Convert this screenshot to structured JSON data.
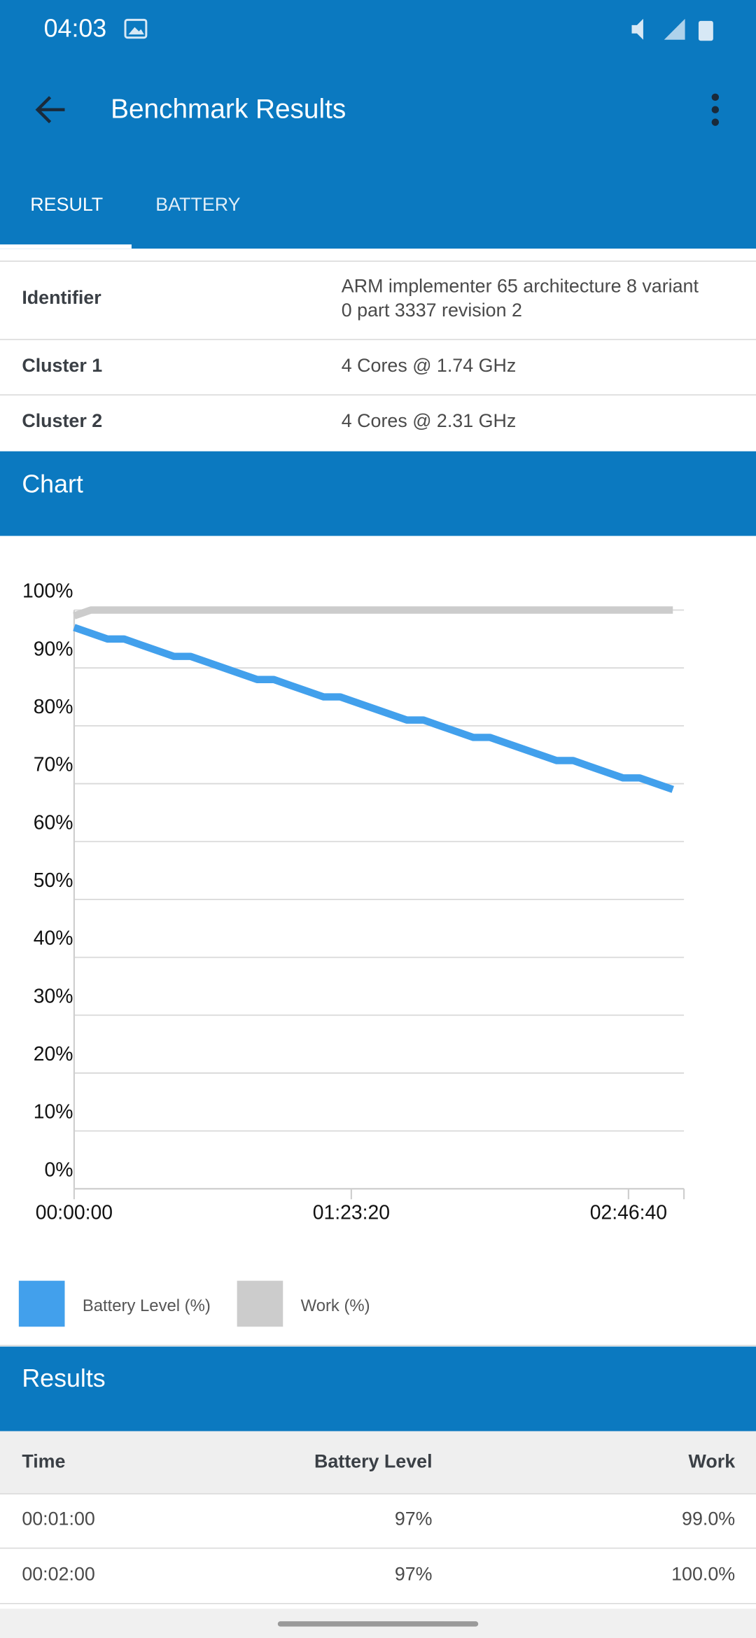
{
  "status_bar": {
    "time": "04:03"
  },
  "app_bar": {
    "title": "Benchmark Results"
  },
  "tabs": [
    "RESULT",
    "BATTERY"
  ],
  "info_table": {
    "rows": [
      {
        "label": "Identifier",
        "value_lines": [
          "ARM implementer 65 architecture 8 variant",
          "0 part 3337 revision 2"
        ]
      },
      {
        "label": "Cluster 1",
        "value_lines": [
          "4 Cores @ 1.74 GHz"
        ]
      },
      {
        "label": "Cluster 2",
        "value_lines": [
          "4 Cores @ 2.31 GHz"
        ]
      }
    ]
  },
  "chart_section": {
    "title": "Chart"
  },
  "chart_data": {
    "type": "line",
    "x": [
      0,
      300,
      600,
      900,
      1200,
      1500,
      1800,
      2100,
      2400,
      2700,
      3000,
      3300,
      3600,
      3900,
      4200,
      4500,
      4800,
      5100,
      5400,
      5700,
      6000,
      6300,
      6600,
      6900,
      7200,
      7500,
      7800,
      8100,
      8400,
      8700,
      9000,
      9300,
      9600,
      9900,
      10200,
      10500,
      10800
    ],
    "series": [
      {
        "name": "Battery Level (%)",
        "color": "#42a0ec",
        "values": [
          97,
          96,
          95,
          95,
          94,
          93,
          92,
          92,
          91,
          90,
          89,
          88,
          88,
          87,
          86,
          85,
          85,
          84,
          83,
          82,
          81,
          81,
          80,
          79,
          78,
          78,
          77,
          76,
          75,
          74,
          74,
          73,
          72,
          71,
          71,
          70,
          69
        ]
      },
      {
        "name": "Work (%)",
        "color": "#cccccc",
        "values": [
          99,
          100,
          100,
          100,
          100,
          100,
          100,
          100,
          100,
          100,
          100,
          100,
          100,
          100,
          100,
          100,
          100,
          100,
          100,
          100,
          100,
          100,
          100,
          100,
          100,
          100,
          100,
          100,
          100,
          100,
          100,
          100,
          100,
          100,
          100,
          100,
          100
        ]
      }
    ],
    "xlim": [
      0,
      11000
    ],
    "xticks": [
      {
        "value": 0,
        "label": "00:00:00"
      },
      {
        "value": 5000,
        "label": "01:23:20"
      },
      {
        "value": 10000,
        "label": "02:46:40"
      }
    ],
    "ylim": [
      0,
      100
    ],
    "yticks": [
      {
        "value": 0,
        "label": "0%"
      },
      {
        "value": 10,
        "label": "10%"
      },
      {
        "value": 20,
        "label": "20%"
      },
      {
        "value": 30,
        "label": "30%"
      },
      {
        "value": 40,
        "label": "40%"
      },
      {
        "value": 50,
        "label": "50%"
      },
      {
        "value": 60,
        "label": "60%"
      },
      {
        "value": 70,
        "label": "70%"
      },
      {
        "value": 80,
        "label": "80%"
      },
      {
        "value": 90,
        "label": "90%"
      },
      {
        "value": 100,
        "label": "100%"
      }
    ],
    "grid": true,
    "legend": "bottom-left"
  },
  "results_section": {
    "title": "Results",
    "columns": [
      "Time",
      "Battery Level",
      "Work"
    ],
    "rows": [
      [
        "00:01:00",
        "97%",
        "99.0%"
      ],
      [
        "00:02:00",
        "97%",
        "100.0%"
      ]
    ]
  }
}
